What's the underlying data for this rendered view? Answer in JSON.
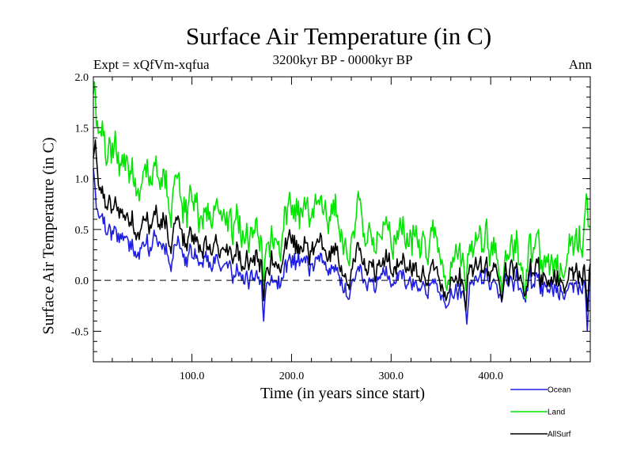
{
  "chart_data": {
    "type": "line",
    "title": "Surface Air Temperature (in C)",
    "experiment_label": "Expt = xQfVm-xqfua",
    "period_label": "3200kyr BP - 0000kyr BP",
    "season_label": "Ann",
    "xlabel": "Time (in years since start)",
    "ylabel": "Surface Air Temperature (in C)",
    "xlim": [
      1,
      500
    ],
    "ylim": [
      -0.8,
      2.0
    ],
    "xticks": [
      100,
      200,
      300,
      400
    ],
    "xtick_labels": [
      "100.0",
      "200.0",
      "300.0",
      "400.0"
    ],
    "yticks": [
      -0.5,
      0.0,
      0.5,
      1.0,
      1.5,
      2.0
    ],
    "ytick_labels": [
      "-0.5",
      "0.0",
      "0.5",
      "1.0",
      "1.5",
      "2.0"
    ],
    "reference_line": 0.0,
    "legend_position": "bottom-right, below plot",
    "trend_anchor_years": [
      1,
      5,
      20,
      50,
      70,
      90,
      110,
      130,
      150,
      170,
      190,
      210,
      230,
      250,
      270,
      300,
      330,
      350,
      370,
      400,
      430,
      450,
      470,
      490,
      500
    ],
    "series": [
      {
        "name": "Ocean",
        "color": "#1e1ee6",
        "trend": [
          0.85,
          0.6,
          0.38,
          0.33,
          0.36,
          0.26,
          0.16,
          0.1,
          0.04,
          -0.04,
          0.1,
          0.14,
          0.06,
          0.01,
          0.0,
          -0.01,
          -0.04,
          -0.06,
          -0.15,
          0.0,
          -0.04,
          -0.08,
          -0.06,
          -0.05,
          0.05
        ],
        "noise_amplitude": 0.11,
        "events": [
          [
            1,
            1.1
          ],
          [
            172,
            -0.4
          ],
          [
            376,
            -0.43
          ],
          [
            497,
            -0.5
          ]
        ]
      },
      {
        "name": "Land",
        "color": "#00e600",
        "trend": [
          1.6,
          1.35,
          1.12,
          1.0,
          1.05,
          0.78,
          0.6,
          0.55,
          0.45,
          0.34,
          0.55,
          0.58,
          0.5,
          0.5,
          0.5,
          0.4,
          0.4,
          0.32,
          0.2,
          0.3,
          0.2,
          0.2,
          0.2,
          0.42,
          0.5
        ],
        "noise_amplitude": 0.2,
        "events": [
          [
            2,
            1.95
          ],
          [
            172,
            -0.05
          ],
          [
            375,
            -0.1
          ],
          [
            496,
            0.85
          ]
        ]
      },
      {
        "name": "AllSurf",
        "color": "#000000",
        "trend": [
          1.15,
          0.88,
          0.62,
          0.55,
          0.6,
          0.44,
          0.32,
          0.25,
          0.19,
          0.11,
          0.26,
          0.28,
          0.2,
          0.16,
          0.16,
          0.12,
          0.1,
          0.06,
          -0.03,
          0.1,
          0.05,
          0.03,
          0.04,
          0.08,
          0.18
        ],
        "noise_amplitude": 0.13,
        "events": [
          [
            3,
            1.38
          ],
          [
            172,
            -0.2
          ],
          [
            375,
            -0.3
          ],
          [
            497,
            -0.3
          ]
        ]
      }
    ]
  }
}
